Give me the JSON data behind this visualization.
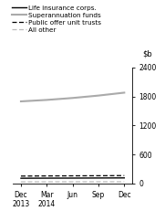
{
  "title": "",
  "x_labels": [
    "Dec\n2013",
    "Mar\n2014",
    "Jun",
    "Sep",
    "Dec"
  ],
  "x_positions": [
    0,
    1,
    2,
    3,
    4
  ],
  "ylim": [
    0,
    2400
  ],
  "yticks": [
    0,
    600,
    1200,
    1800,
    2400
  ],
  "series": [
    {
      "label": "Life insurance corps.",
      "values": [
        110,
        112,
        113,
        115,
        117
      ],
      "color": "#000000",
      "linestyle": "-",
      "linewidth": 1.0
    },
    {
      "label": "Superannuation funds",
      "values": [
        1700,
        1730,
        1770,
        1820,
        1880
      ],
      "color": "#aaaaaa",
      "linestyle": "-",
      "linewidth": 1.5
    },
    {
      "label": "Public offer unit trusts",
      "values": [
        155,
        158,
        160,
        162,
        165
      ],
      "color": "#000000",
      "linestyle": "--",
      "linewidth": 0.9,
      "dashes": [
        4,
        2
      ]
    },
    {
      "label": "All other",
      "values": [
        35,
        36,
        36,
        37,
        37
      ],
      "color": "#bbbbbb",
      "linestyle": "--",
      "linewidth": 0.9,
      "dashes": [
        4,
        2
      ]
    }
  ],
  "legend_fontsize": 5.2,
  "tick_fontsize": 5.5,
  "ylabel_fontsize": 6.0,
  "background_color": "#ffffff"
}
